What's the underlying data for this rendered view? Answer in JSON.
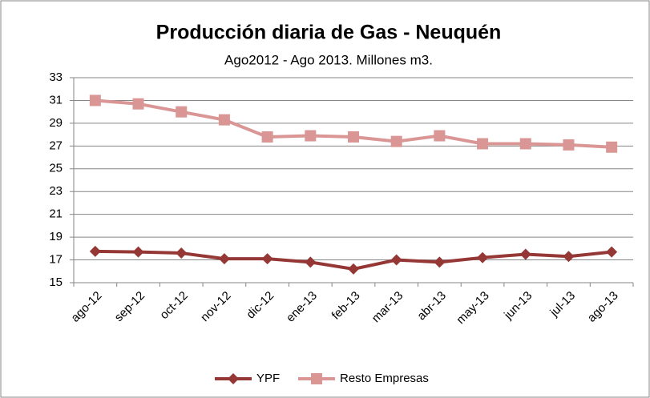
{
  "chart_data": {
    "type": "line",
    "title": "Producción diaria de Gas - Neuquén",
    "subtitle": "Ago2012 - Ago 2013.  Millones m3.",
    "categories": [
      "ago-12",
      "sep-12",
      "oct-12",
      "nov-12",
      "dic-12",
      "ene-13",
      "feb-13",
      "mar-13",
      "abr-13",
      "may-13",
      "jun-13",
      "jul-13",
      "ago-13"
    ],
    "series": [
      {
        "name": "YPF",
        "color": "#953735",
        "marker": "diamond",
        "values": [
          17.75,
          17.7,
          17.6,
          17.1,
          17.1,
          16.8,
          16.2,
          17.0,
          16.8,
          17.2,
          17.5,
          17.3,
          17.7
        ]
      },
      {
        "name": "Resto Empresas",
        "color": "#d99694",
        "marker": "square",
        "values": [
          31.0,
          30.7,
          30.0,
          29.3,
          27.8,
          27.9,
          27.8,
          27.4,
          27.9,
          27.2,
          27.2,
          27.1,
          26.9
        ]
      }
    ],
    "ylim": [
      15,
      33
    ],
    "yticks": [
      15,
      17,
      19,
      21,
      23,
      25,
      27,
      29,
      31,
      33
    ],
    "grid": true,
    "legend": "bottom"
  }
}
